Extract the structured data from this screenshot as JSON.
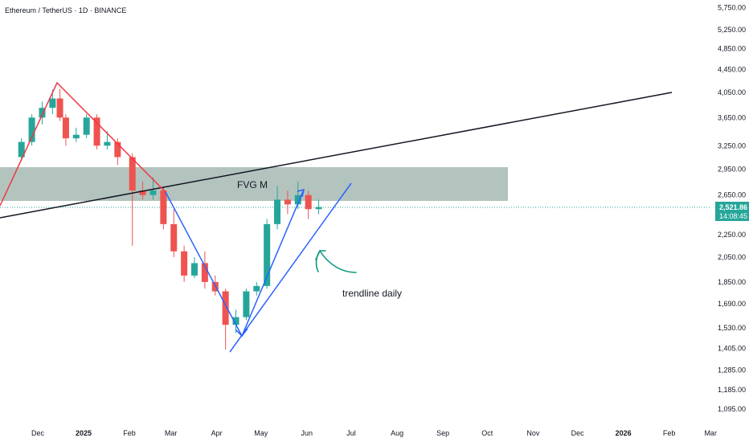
{
  "chart_data": {
    "type": "candlestick",
    "title": "Ethereum / TetherUS · 1D · BINANCE",
    "x_ticks": [
      "Dec",
      "2025",
      "Feb",
      "Mar",
      "Apr",
      "May",
      "Jun",
      "Jul",
      "Aug",
      "Sep",
      "Oct",
      "Nov",
      "Dec",
      "2026",
      "Feb",
      "Mar"
    ],
    "y_ticks": [
      "5,750.00",
      "5,250.00",
      "4,850.00",
      "4,450.00",
      "4,050.00",
      "3,650.00",
      "3,250.00",
      "2,950.00",
      "2,650.00",
      "2,250.00",
      "2,050.00",
      "1,850.00",
      "1,690.00",
      "1,530.00",
      "1,405.00",
      "1,285.00",
      "1,185.00",
      "1,095.00"
    ],
    "y_scale": "log",
    "last_price": "2,521.86",
    "countdown": "14:08:45",
    "colors": {
      "up": "#26a69a",
      "down": "#ef5350",
      "last_price_tag": "#26a69a"
    },
    "candles_approx": [
      [
        "2024-11-20",
        3100,
        3350,
        3050,
        3300
      ],
      [
        "2024-11-27",
        3300,
        3700,
        3250,
        3650
      ],
      [
        "2024-12-04",
        3650,
        3900,
        3550,
        3800
      ],
      [
        "2024-12-11",
        3800,
        4100,
        3700,
        3950
      ],
      [
        "2024-12-16",
        3950,
        4110,
        3600,
        3650
      ],
      [
        "2024-12-20",
        3650,
        3700,
        3250,
        3350
      ],
      [
        "2024-12-27",
        3350,
        3500,
        3300,
        3400
      ],
      [
        "2025-01-03",
        3400,
        3700,
        3350,
        3650
      ],
      [
        "2025-01-10",
        3650,
        3700,
        3200,
        3250
      ],
      [
        "2025-01-17",
        3250,
        3450,
        3200,
        3300
      ],
      [
        "2025-01-24",
        3300,
        3350,
        3000,
        3100
      ],
      [
        "2025-02-03",
        3100,
        3150,
        2150,
        2700
      ],
      [
        "2025-02-10",
        2700,
        2800,
        2600,
        2650
      ],
      [
        "2025-02-17",
        2650,
        2850,
        2600,
        2700
      ],
      [
        "2025-02-24",
        2700,
        2750,
        2300,
        2350
      ],
      [
        "2025-03-03",
        2350,
        2500,
        2050,
        2100
      ],
      [
        "2025-03-10",
        2100,
        2150,
        1850,
        1900
      ],
      [
        "2025-03-17",
        1900,
        2050,
        1880,
        2000
      ],
      [
        "2025-03-24",
        2000,
        2100,
        1800,
        1850
      ],
      [
        "2025-03-31",
        1850,
        1900,
        1750,
        1780
      ],
      [
        "2025-04-07",
        1780,
        1800,
        1400,
        1550
      ],
      [
        "2025-04-14",
        1550,
        1650,
        1500,
        1600
      ],
      [
        "2025-04-21",
        1600,
        1800,
        1580,
        1780
      ],
      [
        "2025-04-28",
        1780,
        1850,
        1750,
        1820
      ],
      [
        "2025-05-05",
        1820,
        2400,
        1800,
        2350
      ],
      [
        "2025-05-12",
        2350,
        2750,
        2300,
        2600
      ],
      [
        "2025-05-19",
        2600,
        2700,
        2450,
        2550
      ],
      [
        "2025-05-26",
        2550,
        2800,
        2500,
        2650
      ],
      [
        "2025-06-02",
        2650,
        2700,
        2400,
        2500
      ],
      [
        "2025-06-09",
        2500,
        2600,
        2450,
        2522
      ]
    ],
    "annotations": [
      {
        "text": "FVG M",
        "kind": "zone",
        "price_range": [
          2630,
          2970
        ],
        "x_range": [
          "2024-11-15",
          "2025-10-12"
        ]
      },
      {
        "text": "trendline daily",
        "kind": "label"
      },
      {
        "text": "",
        "kind": "trendline",
        "color": "#000000",
        "from": [
          "2024-11-15",
          2480
        ],
        "to": [
          "2026-01-31",
          4060
        ]
      },
      {
        "text": "",
        "kind": "path",
        "color": "#f23645",
        "points": [
          [
            "2024-11-15",
            2560
          ],
          [
            "2024-12-18",
            4200
          ],
          [
            "2025-02-24",
            2620
          ]
        ]
      },
      {
        "text": "",
        "kind": "path",
        "color": "#2962ff",
        "points": [
          [
            "2025-02-24",
            2620
          ],
          [
            "2025-04-24",
            1540
          ],
          [
            "2025-05-30",
            2700
          ]
        ]
      },
      {
        "text": "",
        "kind": "trendline",
        "color": "#2962ff",
        "from": [
          "2025-04-09",
          1410
        ],
        "to": [
          "2025-07-01",
          2780
        ]
      }
    ]
  }
}
